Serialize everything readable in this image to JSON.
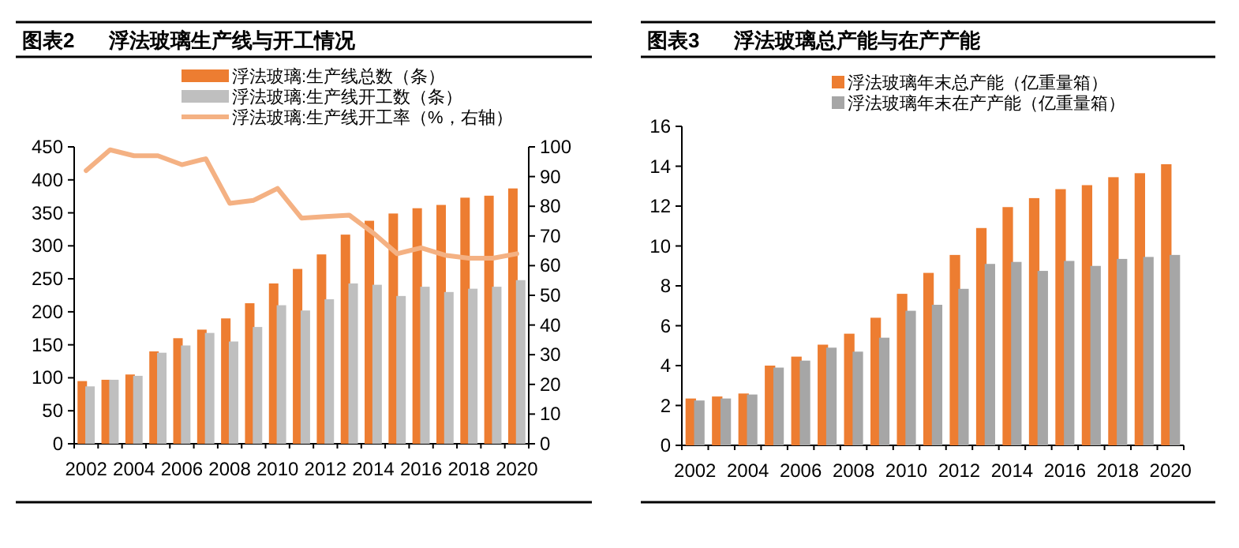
{
  "chart_data": [
    {
      "type": "bar",
      "title": "图表2      浮法玻璃生产线与开工情况",
      "categories": [
        "2002",
        null,
        "2004",
        null,
        "2006",
        null,
        "2008",
        null,
        "2010",
        null,
        "2012",
        null,
        "2014",
        null,
        "2016",
        null,
        "2018",
        null,
        "2020"
      ],
      "series": [
        {
          "name": "浮法玻璃:生产线总数（条）",
          "color": "#ed7d31",
          "values": [
            95,
            97,
            105,
            140,
            160,
            173,
            190,
            213,
            243,
            265,
            287,
            317,
            338,
            349,
            357,
            362,
            373,
            376,
            387
          ]
        },
        {
          "name": "浮法玻璃:生产线开工数（条）",
          "color": "#bfbfbf",
          "values": [
            87,
            97,
            103,
            138,
            149,
            168,
            155,
            177,
            210,
            202,
            219,
            243,
            241,
            224,
            238,
            230,
            235,
            238,
            248
          ]
        },
        {
          "name": "浮法玻璃:生产线开工率（%，右轴）",
          "color": "#f4b183",
          "type": "line",
          "axis": "y2",
          "values": [
            92,
            99,
            97,
            97,
            94,
            96,
            81,
            82,
            86,
            76,
            76.5,
            77,
            71,
            64,
            66,
            63.5,
            62.5,
            62.5,
            64
          ]
        }
      ],
      "ylim": [
        0,
        450
      ],
      "yticks": [
        0,
        50,
        100,
        150,
        200,
        250,
        300,
        350,
        400,
        450
      ],
      "y2lim": [
        0,
        100
      ],
      "y2ticks": [
        0,
        10,
        20,
        30,
        40,
        50,
        60,
        70,
        80,
        90,
        100
      ],
      "legend": "top"
    },
    {
      "type": "bar",
      "title": "图表3      浮法玻璃总产能与在产产能",
      "categories": [
        "2002",
        null,
        "2004",
        null,
        "2006",
        null,
        "2008",
        null,
        "2010",
        null,
        "2012",
        null,
        "2014",
        null,
        "2016",
        null,
        "2018",
        null,
        "2020"
      ],
      "series": [
        {
          "name": "浮法玻璃年末总产能（亿重量箱）",
          "color": "#ed7d31",
          "values": [
            2.35,
            2.45,
            2.6,
            4.0,
            4.45,
            5.05,
            5.6,
            6.4,
            7.6,
            8.65,
            9.55,
            10.9,
            11.95,
            12.4,
            12.85,
            13.05,
            13.45,
            13.65,
            14.1
          ]
        },
        {
          "name": "浮法玻璃年末在产产能（亿重量箱）",
          "color": "#a6a6a6",
          "values": [
            2.25,
            2.35,
            2.55,
            3.9,
            4.25,
            4.9,
            4.7,
            5.4,
            6.75,
            7.05,
            7.85,
            9.1,
            9.2,
            8.75,
            9.25,
            9.0,
            9.35,
            9.45,
            9.55
          ]
        }
      ],
      "ylim": [
        0,
        16
      ],
      "yticks": [
        0,
        2,
        4,
        6,
        8,
        10,
        12,
        14,
        16
      ],
      "legend": "top"
    }
  ]
}
